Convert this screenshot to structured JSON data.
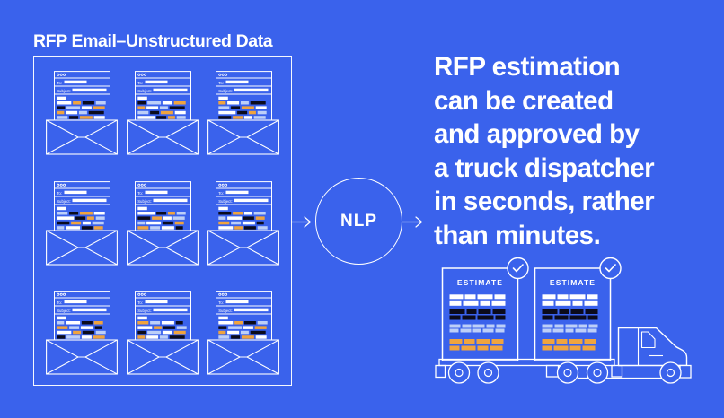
{
  "title": "RFP Email–Unstructured Data",
  "colors": {
    "background": "#3A62EC",
    "line": "#FFFFFF",
    "white": "#FFFFFF",
    "ink": "#0B0B1C",
    "orange": "#F0A43E",
    "periwinkle": "#BDCFF8"
  },
  "emails": {
    "count": 9,
    "columns": 3,
    "window_dots": 3,
    "to_label": "To:",
    "subject_label": "Subject:",
    "body_row_patterns": [
      [
        [
          "w",
          16
        ],
        [
          "o",
          9
        ],
        [
          "k",
          13
        ],
        [
          "p",
          11
        ]
      ],
      [
        [
          "k",
          9
        ],
        [
          "p",
          15
        ],
        [
          "w",
          11
        ],
        [
          "o",
          13
        ]
      ],
      [
        [
          "o",
          8
        ],
        [
          "w",
          13
        ],
        [
          "p",
          9
        ],
        [
          "k",
          17
        ]
      ],
      [
        [
          "p",
          12
        ],
        [
          "k",
          10
        ],
        [
          "o",
          14
        ],
        [
          "w",
          12
        ]
      ],
      [
        [
          "w",
          19
        ],
        [
          "k",
          11
        ],
        [
          "o",
          8
        ],
        [
          "p",
          10
        ]
      ],
      [
        [
          "k",
          14
        ],
        [
          "o",
          11
        ],
        [
          "w",
          9
        ],
        [
          "p",
          13
        ]
      ],
      [
        [
          "p",
          8
        ],
        [
          "w",
          16
        ],
        [
          "k",
          12
        ],
        [
          "o",
          10
        ]
      ],
      [
        [
          "o",
          12
        ],
        [
          "p",
          11
        ],
        [
          "w",
          14
        ],
        [
          "k",
          8
        ]
      ]
    ]
  },
  "nlp": {
    "label": "NLP"
  },
  "headline": {
    "lines": [
      "RFP estimation",
      "can be created",
      "and approved by",
      "a truck dispatcher",
      "in seconds, rather",
      "than minutes."
    ]
  },
  "truck": {
    "cards": [
      {
        "title": "ESTIMATE",
        "approved": true
      },
      {
        "title": "ESTIMATE",
        "approved": true
      }
    ],
    "card_bar_groups": [
      {
        "color": "white",
        "height": 5,
        "rows": [
          [
            15,
            12,
            17,
            12
          ],
          [
            13,
            17,
            11,
            15
          ]
        ]
      },
      {
        "color": "ink",
        "height": 5,
        "rows": [
          [
            17,
            11,
            14,
            14
          ],
          [
            12,
            15,
            18,
            11
          ]
        ]
      },
      {
        "color": "periwinkle",
        "height": 4,
        "rows": [
          [
            12,
            10,
            13,
            9,
            10
          ],
          [
            10,
            12,
            9,
            12,
            10
          ]
        ]
      },
      {
        "color": "orange",
        "height": 5,
        "rows": [
          [
            14,
            12,
            15,
            13
          ],
          [
            11,
            16,
            12,
            14
          ]
        ]
      }
    ]
  }
}
